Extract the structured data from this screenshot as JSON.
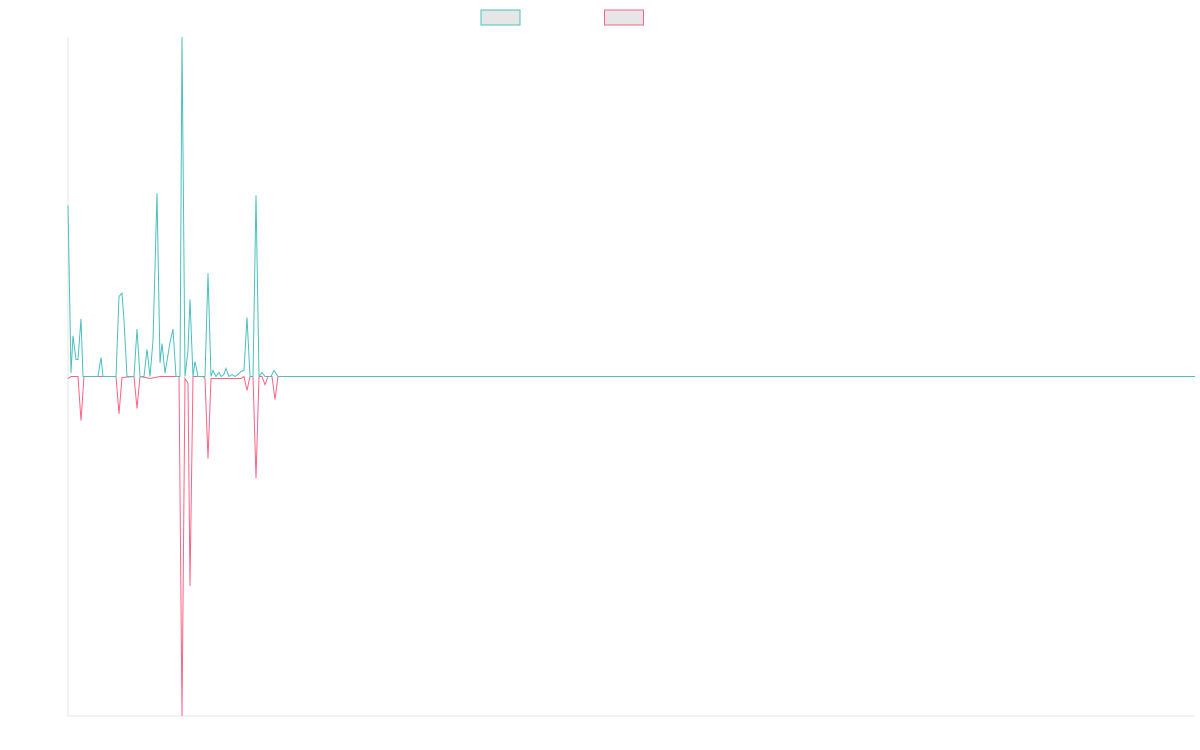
{
  "chart_data": {
    "type": "line",
    "xlim": [
      0,
      1127
    ],
    "ylim": [
      -100,
      100
    ],
    "series": [
      {
        "color": "#4bc0c0",
        "x": [
          0,
          3,
          5,
          8,
          10,
          13,
          15,
          30,
          33,
          35,
          48,
          51,
          54,
          56,
          59,
          66,
          69,
          72,
          76,
          79,
          82,
          85,
          89,
          92,
          94,
          97,
          102,
          105,
          108,
          112,
          114,
          117,
          120,
          122,
          125,
          127,
          130,
          137,
          140,
          143,
          145,
          148,
          151,
          153,
          156,
          158,
          161,
          164,
          167,
          170,
          173,
          176,
          179,
          182,
          185,
          188,
          191,
          194,
          197,
          200,
          203,
          206,
          210,
          1127
        ],
        "values": [
          50.4,
          1,
          12,
          5,
          5,
          17,
          0,
          0,
          5.6,
          0,
          0,
          23.6,
          24.5,
          16.5,
          0,
          0,
          14,
          0,
          0,
          8,
          0,
          10.6,
          54,
          4,
          9.7,
          1,
          10,
          14,
          0,
          0,
          100,
          0,
          7.7,
          22.7,
          0,
          4.4,
          0,
          0,
          30.4,
          0,
          1.8,
          0,
          1.2,
          0,
          0.6,
          2.4,
          0,
          0.6,
          0,
          0.6,
          1.5,
          1.8,
          17.4,
          0,
          0,
          53.4,
          0,
          1.2,
          0,
          0,
          0,
          1.8,
          0,
          0
        ]
      },
      {
        "color": "#ff6384",
        "x": [
          0,
          3,
          10,
          13,
          16,
          48,
          51,
          54,
          66,
          69,
          72,
          82,
          92,
          111,
          114,
          117,
          120,
          122,
          125,
          135,
          137,
          140,
          143,
          173,
          176,
          179,
          182,
          185,
          188,
          191,
          194,
          197,
          200,
          204,
          207,
          210,
          1127
        ],
        "values": [
          -0.6,
          0,
          0,
          -13,
          0,
          0,
          -11,
          -0.3,
          0,
          -9.4,
          0,
          -0.6,
          0,
          0,
          -100,
          -0.6,
          -2,
          -61.7,
          0,
          0,
          -0.6,
          -24.2,
          -0.6,
          -0.6,
          0,
          -4.1,
          0,
          0,
          -30,
          0,
          0,
          -2.4,
          0,
          0,
          -6.8,
          0,
          0
        ]
      }
    ]
  }
}
